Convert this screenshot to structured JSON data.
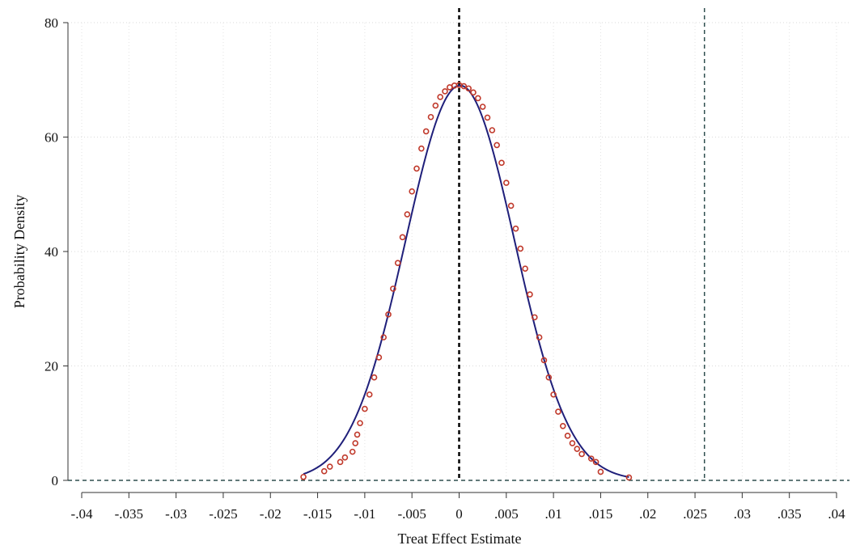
{
  "chart_data": {
    "type": "scatter",
    "title": "",
    "xlabel": "Treat Effect Estimate",
    "ylabel": "Probability Density",
    "xlim": [
      -0.04,
      0.04
    ],
    "ylim": [
      0,
      80
    ],
    "x_ticks": [
      -0.04,
      -0.035,
      -0.03,
      -0.025,
      -0.02,
      -0.015,
      -0.01,
      -0.005,
      0,
      0.005,
      0.01,
      0.015,
      0.02,
      0.025,
      0.03,
      0.035,
      0.04
    ],
    "x_tick_labels": [
      "-.04",
      "-.035",
      "-.03",
      "-.025",
      "-.02",
      "-.015",
      "-.01",
      "-.005",
      "0",
      ".005",
      ".01",
      ".015",
      ".02",
      ".025",
      ".03",
      ".035",
      ".04"
    ],
    "y_ticks": [
      0,
      20,
      40,
      60,
      80
    ],
    "y_tick_labels": [
      "0",
      "20",
      "40",
      "60",
      "80"
    ],
    "grid": true,
    "legend": "none",
    "reference_lines": {
      "vertical": [
        {
          "x": 0,
          "style": "dashed",
          "color": "#000000"
        },
        {
          "x": 0.026,
          "style": "dashed",
          "color": "#2f4f4f"
        }
      ],
      "horizontal": [
        {
          "y": 0,
          "style": "dashed",
          "color": "#2f4f4f"
        }
      ]
    },
    "fitted_curve": {
      "kind": "normal-density",
      "mean": 0.0001,
      "sd": 0.00578,
      "x_range": [
        -0.0165,
        0.018
      ],
      "color": "#1f1f7a"
    },
    "series": [
      {
        "marker": "hollow-circle",
        "color": "#c0392b",
        "points": [
          [
            -0.0165,
            0.6
          ],
          [
            -0.0143,
            1.6
          ],
          [
            -0.0137,
            2.4
          ],
          [
            -0.0126,
            3.2
          ],
          [
            -0.0121,
            4.0
          ],
          [
            -0.0113,
            5.0
          ],
          [
            -0.011,
            6.5
          ],
          [
            -0.0108,
            8.0
          ],
          [
            -0.0105,
            10.0
          ],
          [
            -0.01,
            12.5
          ],
          [
            -0.0095,
            15.0
          ],
          [
            -0.009,
            18.0
          ],
          [
            -0.0085,
            21.5
          ],
          [
            -0.008,
            25.0
          ],
          [
            -0.0075,
            29.0
          ],
          [
            -0.007,
            33.5
          ],
          [
            -0.0065,
            38.0
          ],
          [
            -0.006,
            42.5
          ],
          [
            -0.0055,
            46.5
          ],
          [
            -0.005,
            50.5
          ],
          [
            -0.0045,
            54.5
          ],
          [
            -0.004,
            58.0
          ],
          [
            -0.0035,
            61.0
          ],
          [
            -0.003,
            63.5
          ],
          [
            -0.0025,
            65.5
          ],
          [
            -0.002,
            67.0
          ],
          [
            -0.0015,
            68.0
          ],
          [
            -0.001,
            68.7
          ],
          [
            -0.0005,
            69.0
          ],
          [
            0.0,
            69.1
          ],
          [
            0.0005,
            68.9
          ],
          [
            0.001,
            68.5
          ],
          [
            0.0015,
            67.8
          ],
          [
            0.002,
            66.8
          ],
          [
            0.0025,
            65.3
          ],
          [
            0.003,
            63.4
          ],
          [
            0.0035,
            61.2
          ],
          [
            0.004,
            58.6
          ],
          [
            0.0045,
            55.5
          ],
          [
            0.005,
            52.0
          ],
          [
            0.0055,
            48.0
          ],
          [
            0.006,
            44.0
          ],
          [
            0.0065,
            40.5
          ],
          [
            0.007,
            37.0
          ],
          [
            0.0075,
            32.5
          ],
          [
            0.008,
            28.5
          ],
          [
            0.0085,
            25.0
          ],
          [
            0.009,
            21.0
          ],
          [
            0.0095,
            18.0
          ],
          [
            0.01,
            15.0
          ],
          [
            0.0105,
            12.0
          ],
          [
            0.011,
            9.5
          ],
          [
            0.0115,
            7.8
          ],
          [
            0.012,
            6.5
          ],
          [
            0.0125,
            5.5
          ],
          [
            0.013,
            4.6
          ],
          [
            0.014,
            3.8
          ],
          [
            0.0145,
            3.2
          ],
          [
            0.015,
            1.5
          ],
          [
            0.018,
            0.5
          ]
        ]
      }
    ]
  }
}
